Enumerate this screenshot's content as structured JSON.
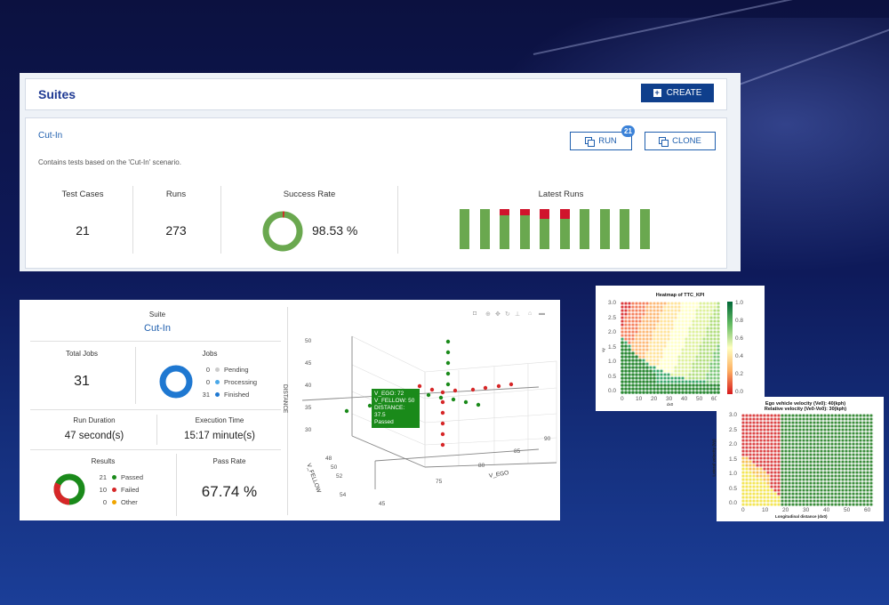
{
  "suites": {
    "title": "Suites",
    "create_label": "CREATE",
    "suite_name": "Cut-In",
    "description": "Contains tests based on the 'Cut-In' scenario.",
    "run_label": "RUN",
    "run_badge": "21",
    "clone_label": "CLONE",
    "stats": {
      "test_cases_label": "Test Cases",
      "test_cases_value": "21",
      "runs_label": "Runs",
      "runs_value": "273",
      "success_rate_label": "Success Rate",
      "success_rate_value": "98.53 %",
      "success_rate_fraction": 0.9853,
      "latest_runs_label": "Latest Runs",
      "latest_runs": [
        {
          "failed_fraction": 0
        },
        {
          "failed_fraction": 0
        },
        {
          "failed_fraction": 0.15
        },
        {
          "failed_fraction": 0.15
        },
        {
          "failed_fraction": 0.25
        },
        {
          "failed_fraction": 0.25
        },
        {
          "failed_fraction": 0
        },
        {
          "failed_fraction": 0
        },
        {
          "failed_fraction": 0
        },
        {
          "failed_fraction": 0
        }
      ]
    }
  },
  "run": {
    "suite_label": "Suite",
    "suite_name": "Cut-In",
    "total_jobs_label": "Total Jobs",
    "total_jobs_value": "31",
    "jobs_label": "Jobs",
    "jobs": [
      {
        "count": "0",
        "label": "Pending",
        "color": "#cccccc"
      },
      {
        "count": "0",
        "label": "Processing",
        "color": "#4aa8e8"
      },
      {
        "count": "31",
        "label": "Finished",
        "color": "#1f78d1"
      }
    ],
    "run_duration_label": "Run Duration",
    "run_duration_value": "47 second(s)",
    "execution_time_label": "Execution Time",
    "execution_time_value": "15:17 minute(s)",
    "results_label": "Results",
    "results": [
      {
        "count": "21",
        "label": "Passed",
        "color": "#1a8a1a"
      },
      {
        "count": "10",
        "label": "Failed",
        "color": "#d62728"
      },
      {
        "count": "0",
        "label": "Other",
        "color": "#f0a500"
      }
    ],
    "pass_rate_label": "Pass Rate",
    "pass_rate_value": "67.74 %",
    "scatter": {
      "z_axis_label": "DISTANCE",
      "x_axis_label": "V_EGO",
      "y_axis_label": "V_FELLOW",
      "z_ticks": [
        "50",
        "45",
        "40",
        "35",
        "30"
      ],
      "x_ticks": [
        "75",
        "80",
        "85",
        "90"
      ],
      "y_ticks": [
        "48",
        "50",
        "52",
        "54",
        "45"
      ],
      "tooltip": [
        "V_EGO: 72",
        "V_FELLOW: 50",
        "DISTANCE: 37.5",
        "Passed"
      ]
    }
  },
  "heatmap1": {
    "title": "Heatmap of TTC_KPI",
    "ylabel": "vy",
    "xlabel": "dx0",
    "x_ticks": [
      "0",
      "10",
      "20",
      "30",
      "40",
      "50",
      "60"
    ],
    "y_ticks": [
      "3.0",
      "2.5",
      "2.0",
      "1.5",
      "1.0",
      "0.5",
      "0.0"
    ],
    "cbar_ticks": [
      "1.0",
      "0.8",
      "0.6",
      "0.4",
      "0.2",
      "0.0"
    ]
  },
  "heatmap2": {
    "title_line1": "Ego vehicle velocity (Ve0):   40(kph)",
    "title_line2": "Relative velocity (Ve0-Vo0):  30(kph)",
    "ylabel": "Lateral velocity (Vy)",
    "xlabel": "Longitudinal distance (dx0)",
    "x_ticks": [
      "0",
      "10",
      "20",
      "30",
      "40",
      "50",
      "60"
    ],
    "y_ticks": [
      "3.0",
      "2.5",
      "2.0",
      "1.5",
      "1.0",
      "0.5",
      "0.0"
    ]
  }
}
